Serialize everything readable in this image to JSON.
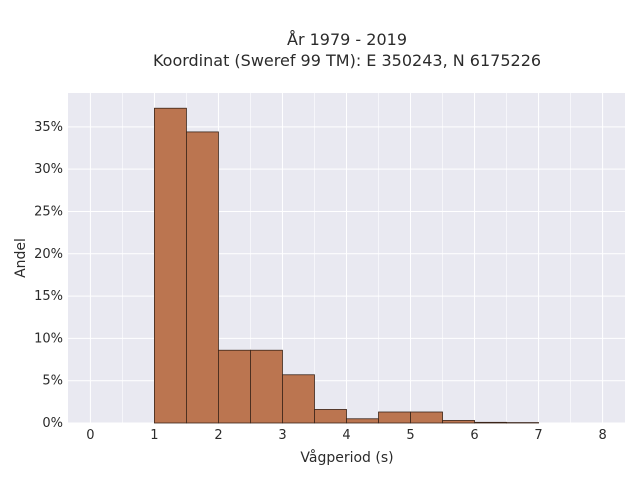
{
  "chart_data": {
    "type": "bar",
    "title_lines": [
      "År 1979 - 2019",
      "Koordinat (Sweref 99 TM): E 350243, N 6175226"
    ],
    "xlabel": "Vågperiod (s)",
    "ylabel": "Andel",
    "xlim": [
      -0.35,
      8.35
    ],
    "ylim": [
      0,
      0.39
    ],
    "x_ticks": [
      0,
      1,
      2,
      3,
      4,
      5,
      6,
      7,
      8
    ],
    "x_tick_labels": [
      "0",
      "1",
      "2",
      "3",
      "4",
      "5",
      "6",
      "7",
      "8"
    ],
    "y_ticks": [
      0,
      0.05,
      0.1,
      0.15,
      0.2,
      0.25,
      0.3,
      0.35
    ],
    "y_tick_labels": [
      "0%",
      "5%",
      "10%",
      "15%",
      "20%",
      "25%",
      "30%",
      "35%"
    ],
    "grid": true,
    "bin_width": 0.5,
    "bins": [
      {
        "start": 1.0,
        "end": 1.5,
        "value": 0.372
      },
      {
        "start": 1.5,
        "end": 2.0,
        "value": 0.344
      },
      {
        "start": 2.0,
        "end": 2.5,
        "value": 0.086
      },
      {
        "start": 2.5,
        "end": 3.0,
        "value": 0.086
      },
      {
        "start": 3.0,
        "end": 3.5,
        "value": 0.057
      },
      {
        "start": 3.5,
        "end": 4.0,
        "value": 0.016
      },
      {
        "start": 4.0,
        "end": 4.5,
        "value": 0.005
      },
      {
        "start": 4.5,
        "end": 5.0,
        "value": 0.013
      },
      {
        "start": 5.0,
        "end": 5.5,
        "value": 0.013
      },
      {
        "start": 5.5,
        "end": 6.0,
        "value": 0.003
      },
      {
        "start": 6.0,
        "end": 6.5,
        "value": 0.0008
      },
      {
        "start": 6.5,
        "end": 7.0,
        "value": 0.0005
      }
    ],
    "colors": {
      "plot_bg": "#e9e9f1",
      "grid": "#ffffff",
      "bar_fill": "#bb7550",
      "bar_stroke": "#3a2418"
    }
  }
}
